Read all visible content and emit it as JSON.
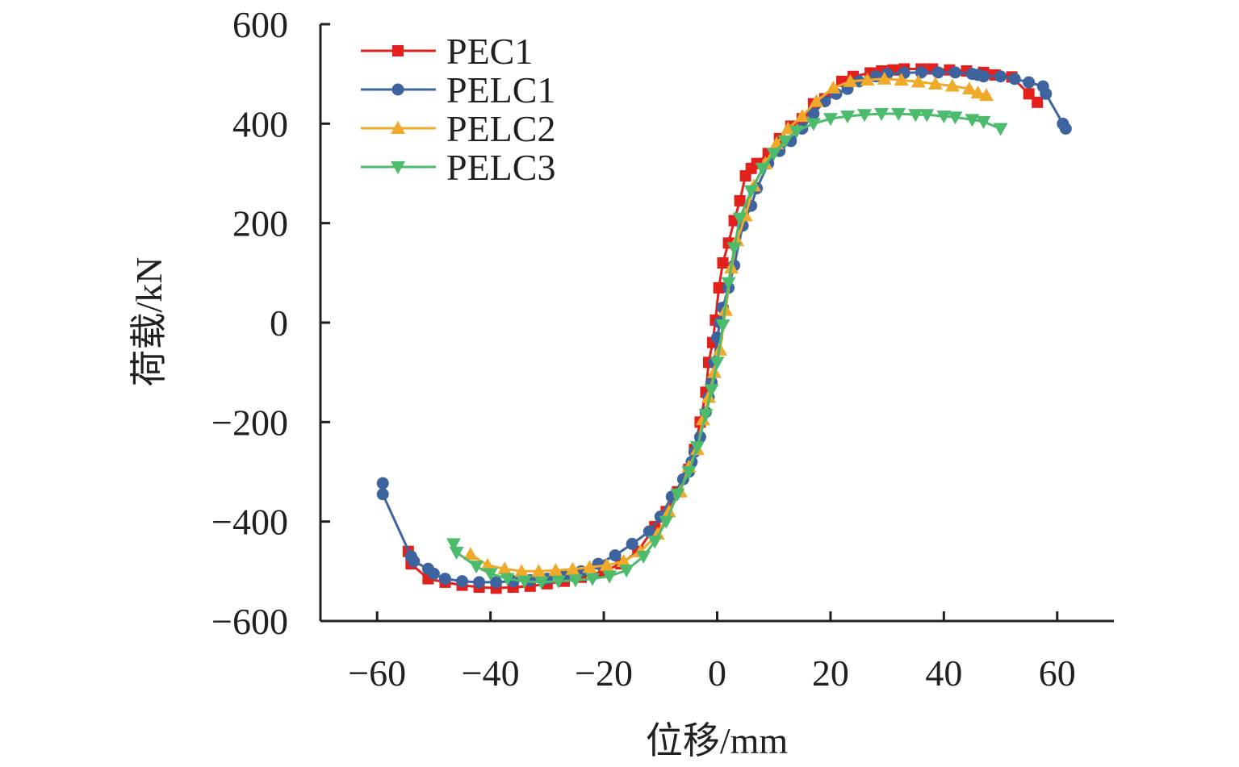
{
  "chart_data": {
    "type": "line",
    "title": "",
    "xlabel": "位移/mm",
    "ylabel": "荷载/kN",
    "xlim": [
      -70,
      70
    ],
    "ylim": [
      -600,
      600
    ],
    "xticks": [
      -60,
      -40,
      -20,
      0,
      20,
      40,
      60
    ],
    "yticks": [
      600,
      400,
      200,
      0,
      -200,
      -400,
      -600
    ],
    "xtick_labels": [
      "−60",
      "−40",
      "−20",
      "0",
      "20",
      "40",
      "60"
    ],
    "ytick_labels": [
      "600",
      "400",
      "200",
      "0",
      "−200",
      "−400",
      "−600"
    ],
    "grid": false,
    "legend_position": "top-left",
    "series": [
      {
        "name": "PEC1",
        "color": "#e3211c",
        "marker": "square",
        "x": [
          -54.5,
          -54,
          -51,
          -48,
          -45,
          -42,
          -39,
          -36,
          -33,
          -30,
          -27,
          -24,
          -20,
          -17,
          -14,
          -11,
          -9,
          -7,
          -5,
          -4,
          -3,
          -2,
          -1.5,
          -0.8,
          -0.3,
          0.3,
          1,
          2,
          3,
          4,
          5,
          6,
          7,
          9,
          11,
          13,
          15,
          17,
          19,
          22,
          24,
          27,
          29,
          31,
          33,
          36,
          38,
          41,
          44,
          47,
          49,
          52,
          55,
          56.5
        ],
        "y": [
          -460,
          -485,
          -515,
          -522,
          -528,
          -532,
          -534,
          -532,
          -530,
          -525,
          -520,
          -512,
          -500,
          -485,
          -460,
          -410,
          -380,
          -340,
          -295,
          -255,
          -200,
          -140,
          -80,
          -40,
          5,
          70,
          120,
          160,
          205,
          245,
          295,
          310,
          320,
          340,
          370,
          395,
          410,
          440,
          450,
          485,
          495,
          502,
          506,
          508,
          510,
          510,
          510,
          508,
          506,
          503,
          498,
          494,
          460,
          443
        ]
      },
      {
        "name": "PELC1",
        "color": "#3e64a0",
        "marker": "circle",
        "x": [
          -59,
          -59,
          -54,
          -53.5,
          -51,
          -50,
          -48,
          -45,
          -42,
          -39,
          -36,
          -33,
          -30,
          -27,
          -24,
          -21,
          -18,
          -15,
          -12,
          -10,
          -8,
          -6,
          -5,
          -4.5,
          -4,
          -3,
          -2,
          -1.5,
          -1,
          -0.5,
          0,
          0.5,
          1,
          2,
          3,
          4.5,
          6,
          7,
          9,
          11,
          13,
          15,
          17,
          19,
          21,
          23,
          25,
          28,
          30,
          33,
          36,
          39,
          42,
          45,
          46,
          47,
          50,
          52.5,
          55,
          57.5,
          58,
          61,
          61.5
        ],
        "y": [
          -323,
          -345,
          -470,
          -480,
          -495,
          -505,
          -515,
          -520,
          -522,
          -522,
          -520,
          -518,
          -515,
          -510,
          -500,
          -485,
          -468,
          -445,
          -420,
          -390,
          -350,
          -315,
          -300,
          -280,
          -260,
          -230,
          -180,
          -150,
          -120,
          -80,
          -30,
          0,
          30,
          70,
          115,
          195,
          235,
          270,
          320,
          345,
          365,
          390,
          420,
          445,
          460,
          470,
          485,
          495,
          500,
          502,
          503,
          503,
          503,
          500,
          498,
          495,
          495,
          490,
          483,
          475,
          460,
          400,
          390
        ]
      },
      {
        "name": "PELC2",
        "color": "#f0a928",
        "marker": "triangle-up",
        "x": [
          -43.5,
          -40.5,
          -37.5,
          -34.5,
          -31.5,
          -28.5,
          -25.5,
          -22.5,
          -19.5,
          -16.5,
          -13.5,
          -10.5,
          -8.5,
          -6.5,
          -5,
          -3.5,
          -2.5,
          -1.5,
          -0.5,
          0.5,
          1.5,
          2.5,
          3.5,
          5,
          6.5,
          8.5,
          10.5,
          12.5,
          15,
          17.5,
          20.5,
          23.5,
          26.5,
          29.5,
          32.5,
          35.5,
          38.5,
          41.5,
          44.5,
          46,
          47.5
        ],
        "y": [
          -466,
          -488,
          -495,
          -500,
          -500,
          -498,
          -496,
          -492,
          -488,
          -480,
          -460,
          -425,
          -380,
          -340,
          -290,
          -255,
          -195,
          -150,
          -100,
          -55,
          25,
          110,
          165,
          215,
          275,
          320,
          360,
          390,
          415,
          445,
          472,
          485,
          488,
          490,
          488,
          484,
          480,
          476,
          470,
          462,
          457
        ]
      },
      {
        "name": "PELC3",
        "color": "#4cbb6c",
        "marker": "triangle-down",
        "x": [
          -46.5,
          -46,
          -42.5,
          -40,
          -37,
          -34,
          -31,
          -28,
          -25,
          -22,
          -19,
          -16,
          -13,
          -11,
          -9,
          -7,
          -5,
          -3.5,
          -2,
          -1,
          0,
          1,
          2,
          3,
          4,
          6,
          8,
          10,
          12,
          14,
          17,
          20,
          23,
          26,
          29,
          32,
          35,
          37,
          40,
          42,
          45,
          47,
          50
        ],
        "y": [
          -445,
          -462,
          -490,
          -505,
          -515,
          -520,
          -522,
          -520,
          -518,
          -515,
          -510,
          -498,
          -470,
          -440,
          -400,
          -345,
          -300,
          -250,
          -185,
          -135,
          -80,
          -5,
          80,
          150,
          210,
          265,
          310,
          340,
          365,
          385,
          400,
          410,
          415,
          418,
          420,
          420,
          418,
          418,
          415,
          413,
          408,
          404,
          390
        ]
      }
    ]
  }
}
